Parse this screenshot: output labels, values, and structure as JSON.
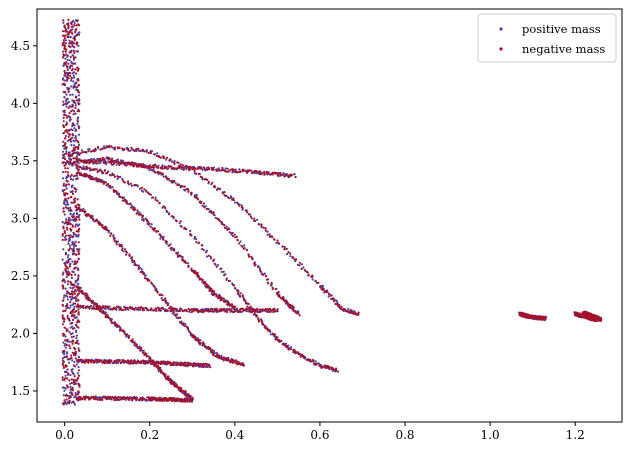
{
  "chart_data": {
    "type": "scatter",
    "title": "",
    "xlabel": "",
    "ylabel": "",
    "xlim": [
      -0.065,
      1.31
    ],
    "ylim": [
      1.23,
      4.82
    ],
    "xticks": [
      0.0,
      0.2,
      0.4,
      0.6,
      0.8,
      1.0,
      1.2
    ],
    "xtick_labels": [
      "0.0",
      "0.2",
      "0.4",
      "0.6",
      "0.8",
      "1.0",
      "1.2"
    ],
    "yticks": [
      1.5,
      2.0,
      2.5,
      3.0,
      3.5,
      4.0,
      4.5
    ],
    "ytick_labels": [
      "1.5",
      "2.0",
      "2.5",
      "3.0",
      "3.5",
      "4.0",
      "4.5"
    ],
    "grid": false,
    "legend_position": "top-right",
    "series": [
      {
        "name": "positive mass",
        "color": "#4b3fa6",
        "marker": "dot",
        "curves": [
          [
            [
              0.0,
              3.55
            ],
            [
              0.1,
              3.62
            ],
            [
              0.2,
              3.58
            ],
            [
              0.3,
              3.42
            ],
            [
              0.4,
              3.15
            ],
            [
              0.5,
              2.8
            ],
            [
              0.6,
              2.42
            ],
            [
              0.65,
              2.22
            ],
            [
              0.69,
              2.17
            ]
          ],
          [
            [
              0.0,
              3.48
            ],
            [
              0.1,
              3.52
            ],
            [
              0.2,
              3.44
            ],
            [
              0.3,
              3.22
            ],
            [
              0.4,
              2.85
            ],
            [
              0.5,
              2.35
            ],
            [
              0.55,
              2.17
            ]
          ],
          [
            [
              0.03,
              3.45
            ],
            [
              0.1,
              3.4
            ],
            [
              0.2,
              3.22
            ],
            [
              0.3,
              2.85
            ],
            [
              0.4,
              2.4
            ],
            [
              0.45,
              2.15
            ],
            [
              0.5,
              1.95
            ],
            [
              0.55,
              1.82
            ],
            [
              0.6,
              1.72
            ],
            [
              0.64,
              1.68
            ]
          ],
          [
            [
              0.03,
              3.4
            ],
            [
              0.1,
              3.3
            ],
            [
              0.2,
              2.95
            ],
            [
              0.3,
              2.55
            ],
            [
              0.35,
              2.35
            ],
            [
              0.4,
              2.22
            ]
          ],
          [
            [
              0.03,
              3.1
            ],
            [
              0.1,
              2.9
            ],
            [
              0.2,
              2.45
            ],
            [
              0.3,
              1.98
            ],
            [
              0.36,
              1.8
            ],
            [
              0.42,
              1.73
            ]
          ],
          [
            [
              0.03,
              2.4
            ],
            [
              0.1,
              2.15
            ],
            [
              0.2,
              1.78
            ],
            [
              0.25,
              1.58
            ],
            [
              0.3,
              1.43
            ]
          ],
          [
            [
              0.03,
              3.5
            ],
            [
              0.15,
              3.47
            ],
            [
              0.25,
              3.44
            ],
            [
              0.35,
              3.43
            ],
            [
              0.45,
              3.4
            ],
            [
              0.54,
              3.37
            ]
          ],
          [
            [
              0.03,
              2.23
            ],
            [
              0.3,
              2.2
            ],
            [
              0.5,
              2.2
            ]
          ],
          [
            [
              0.03,
              1.76
            ],
            [
              0.2,
              1.75
            ],
            [
              0.34,
              1.72
            ]
          ],
          [
            [
              0.03,
              1.44
            ],
            [
              0.2,
              1.43
            ],
            [
              0.3,
              1.42
            ]
          ],
          [
            [
              1.07,
              2.17
            ],
            [
              1.1,
              2.14
            ],
            [
              1.13,
              2.13
            ]
          ],
          [
            [
              1.2,
              2.17
            ],
            [
              1.23,
              2.14
            ],
            [
              1.25,
              2.12
            ]
          ],
          [
            [
              1.22,
              2.18
            ],
            [
              1.24,
              2.15
            ],
            [
              1.26,
              2.12
            ]
          ]
        ]
      },
      {
        "name": "negative mass",
        "color": "#a5122a",
        "marker": "dot",
        "curves": [
          [
            [
              0.0,
              3.55
            ],
            [
              0.1,
              3.62
            ],
            [
              0.2,
              3.58
            ],
            [
              0.3,
              3.42
            ],
            [
              0.4,
              3.15
            ],
            [
              0.5,
              2.8
            ],
            [
              0.6,
              2.42
            ],
            [
              0.65,
              2.22
            ],
            [
              0.69,
              2.17
            ]
          ],
          [
            [
              0.0,
              3.48
            ],
            [
              0.1,
              3.52
            ],
            [
              0.2,
              3.44
            ],
            [
              0.3,
              3.22
            ],
            [
              0.4,
              2.85
            ],
            [
              0.5,
              2.35
            ],
            [
              0.55,
              2.17
            ]
          ],
          [
            [
              0.03,
              3.45
            ],
            [
              0.1,
              3.4
            ],
            [
              0.2,
              3.22
            ],
            [
              0.3,
              2.85
            ],
            [
              0.4,
              2.4
            ],
            [
              0.45,
              2.15
            ],
            [
              0.5,
              1.95
            ],
            [
              0.55,
              1.82
            ],
            [
              0.6,
              1.72
            ],
            [
              0.64,
              1.68
            ]
          ],
          [
            [
              0.03,
              3.4
            ],
            [
              0.1,
              3.3
            ],
            [
              0.2,
              2.95
            ],
            [
              0.3,
              2.55
            ],
            [
              0.35,
              2.35
            ],
            [
              0.4,
              2.22
            ]
          ],
          [
            [
              0.03,
              3.1
            ],
            [
              0.1,
              2.9
            ],
            [
              0.2,
              2.45
            ],
            [
              0.3,
              1.98
            ],
            [
              0.36,
              1.8
            ],
            [
              0.42,
              1.73
            ]
          ],
          [
            [
              0.03,
              2.4
            ],
            [
              0.1,
              2.15
            ],
            [
              0.2,
              1.78
            ],
            [
              0.25,
              1.58
            ],
            [
              0.3,
              1.43
            ]
          ],
          [
            [
              0.03,
              3.5
            ],
            [
              0.15,
              3.47
            ],
            [
              0.25,
              3.44
            ],
            [
              0.35,
              3.43
            ],
            [
              0.45,
              3.4
            ],
            [
              0.54,
              3.37
            ]
          ],
          [
            [
              0.03,
              2.23
            ],
            [
              0.3,
              2.2
            ],
            [
              0.5,
              2.2
            ]
          ],
          [
            [
              0.03,
              1.76
            ],
            [
              0.2,
              1.75
            ],
            [
              0.34,
              1.72
            ]
          ],
          [
            [
              0.03,
              1.44
            ],
            [
              0.2,
              1.43
            ],
            [
              0.3,
              1.42
            ]
          ],
          [
            [
              1.07,
              2.17
            ],
            [
              1.1,
              2.14
            ],
            [
              1.13,
              2.13
            ]
          ],
          [
            [
              1.2,
              2.17
            ],
            [
              1.23,
              2.14
            ],
            [
              1.25,
              2.12
            ]
          ],
          [
            [
              1.22,
              2.18
            ],
            [
              1.24,
              2.15
            ],
            [
              1.26,
              2.12
            ]
          ]
        ],
        "vertical_band": {
          "x_range": [
            -0.005,
            0.035
          ],
          "y_range": [
            1.38,
            4.73
          ]
        }
      }
    ]
  }
}
